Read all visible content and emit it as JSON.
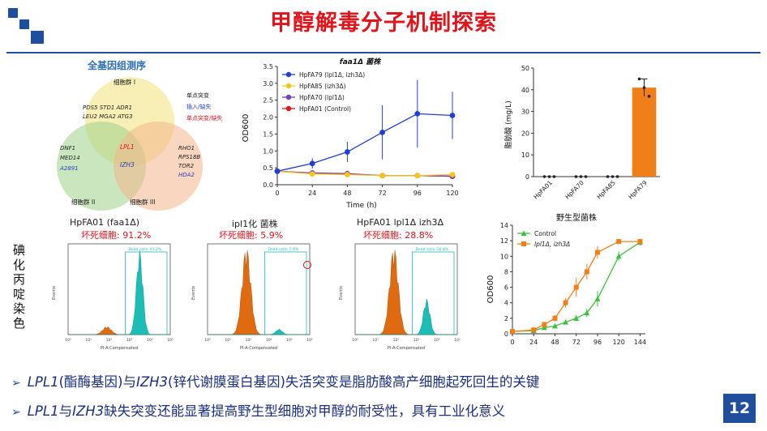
{
  "slide": {
    "title": "甲醇解毒分子机制探索",
    "page_number": "12",
    "side_label": "碘化丙啶染色"
  },
  "venn": {
    "title": "全基因组测序",
    "group1": "细胞群 I",
    "group2": "细胞群 II",
    "group3": "细胞群 III",
    "legend": [
      "单点突变",
      "插入/缺失",
      "单点突变/缺失"
    ],
    "legend_colors": [
      "#222222",
      "#2a3fbf",
      "#e0141b"
    ],
    "top_genes": [
      "PDS5  STD1  ADR1",
      "LEU2  MGA2  ATG3"
    ],
    "left_genes": [
      "DNF1",
      "MED14",
      "A2891"
    ],
    "right_genes": [
      "RHO1",
      "RPS18B",
      "TOR2",
      "HDA2"
    ],
    "center_genes": [
      "LPL1",
      "IZH3"
    ]
  },
  "flow": {
    "panels": [
      {
        "title": "HpFA01 (faa1Δ)",
        "dead": "坏死细胞: 91.2%",
        "gate": "Dead cells: 91.2%"
      },
      {
        "title": "ipl1化 菌株",
        "dead": "坏死细胞: 5.9%",
        "gate": "Dead cells: 5.9%"
      },
      {
        "title": "HpFA01 lpl1Δ izh3Δ",
        "dead": "坏死细胞: 28.8%",
        "gate": "Dead cells: 28.8%"
      }
    ],
    "xlabel": "PI-A-Compensated",
    "ylabel": "Events"
  },
  "chart_data": [
    {
      "type": "line",
      "title": "faa1Δ 菌株",
      "xlabel": "Time (h)",
      "ylabel": "OD600",
      "x": [
        0,
        24,
        48,
        72,
        96,
        120
      ],
      "xlim": [
        0,
        120
      ],
      "ylim": [
        0,
        3.5
      ],
      "yticks": [
        0.0,
        0.5,
        1.0,
        1.5,
        2.0,
        2.5,
        3.0,
        3.5
      ],
      "series": [
        {
          "name": "HpFA79 (lpl1Δ, izh3Δ)",
          "color": "#1f3fd6",
          "values": [
            0.4,
            0.63,
            0.97,
            1.55,
            2.1,
            2.05
          ],
          "errors": [
            0.05,
            0.15,
            0.3,
            0.8,
            1.0,
            0.7
          ]
        },
        {
          "name": "HpFA85 (izh3Δ)",
          "color": "#f5c518",
          "values": [
            0.4,
            0.32,
            0.3,
            0.27,
            0.27,
            0.3
          ],
          "errors": [
            0.03,
            0.03,
            0.03,
            0.03,
            0.03,
            0.03
          ]
        },
        {
          "name": "HpFA70 (lpl1Δ)",
          "color": "#7a3fc0",
          "values": [
            0.4,
            0.35,
            0.33,
            0.27,
            0.27,
            0.25
          ],
          "errors": [
            0.03,
            0.03,
            0.03,
            0.03,
            0.03,
            0.03
          ]
        },
        {
          "name": "HpFA01 (Control)",
          "color": "#e0141b",
          "values": [
            0.4,
            0.33,
            0.32,
            0.27,
            0.27,
            0.25
          ],
          "errors": [
            0.03,
            0.03,
            0.03,
            0.03,
            0.03,
            0.03
          ]
        }
      ],
      "legend": "top-left"
    },
    {
      "type": "bar",
      "ylabel": "脂肪酸 (mg/L)",
      "categories": [
        "HpFA01",
        "HpFA70",
        "HpFA85",
        "HpFA79"
      ],
      "values": [
        0,
        0,
        0,
        41
      ],
      "errors": [
        0,
        0,
        0,
        4
      ],
      "points": [
        [
          0,
          0,
          0
        ],
        [
          0,
          0,
          0
        ],
        [
          0,
          0,
          0
        ],
        [
          45,
          41,
          37
        ]
      ],
      "ylim": [
        0,
        50
      ],
      "yticks": [
        0,
        10,
        20,
        30,
        40,
        50
      ],
      "color": "#f07f1a"
    },
    {
      "type": "line",
      "title": "野生型菌株",
      "xlabel": "",
      "ylabel": "OD600",
      "x": [
        0,
        24,
        36,
        48,
        60,
        72,
        84,
        96,
        120,
        144
      ],
      "xticks": [
        0,
        24,
        48,
        72,
        96,
        120,
        144
      ],
      "xlim": [
        0,
        150
      ],
      "ylim": [
        0,
        14
      ],
      "yticks": [
        0,
        2,
        4,
        6,
        8,
        10,
        12,
        14
      ],
      "series": [
        {
          "name": "Control",
          "color": "#3fbf3f",
          "marker": "triangle",
          "values": [
            0.3,
            0.4,
            0.8,
            1.0,
            1.5,
            2.0,
            2.7,
            4.5,
            10.0,
            11.8
          ],
          "errors": [
            0.1,
            0.1,
            0.2,
            0.2,
            0.3,
            0.4,
            0.5,
            1.0,
            0.6,
            0.4
          ]
        },
        {
          "name": "lpl1Δ, izh3Δ",
          "color": "#f07f1a",
          "marker": "square",
          "values": [
            0.3,
            0.5,
            1.2,
            2.0,
            4.0,
            6.0,
            8.0,
            10.5,
            11.9,
            11.9
          ],
          "errors": [
            0.1,
            0.1,
            0.3,
            0.4,
            0.6,
            1.2,
            1.0,
            0.8,
            0.3,
            0.2
          ]
        }
      ],
      "legend": "top-left"
    }
  ],
  "bullets": [
    {
      "a": "LPL1",
      "b": "(酯酶基因)与",
      "c": "IZH3",
      "d": "(锌代谢膜蛋白基因)失活突变是脂肪酸高产细胞起死回生的关键"
    },
    {
      "a": "LPL1",
      "b": "与",
      "c": "IZH3",
      "d": "缺失突变还能显著提高野生型细胞对甲醇的耐受性，具有工业化意义"
    }
  ],
  "colors": {
    "brand": "#1f4e9c",
    "title": "#e0141b",
    "bullet_text": "#1a2f80",
    "flow_fill": "#1bbdb4",
    "flow_fill_alt": "#e06a10"
  }
}
